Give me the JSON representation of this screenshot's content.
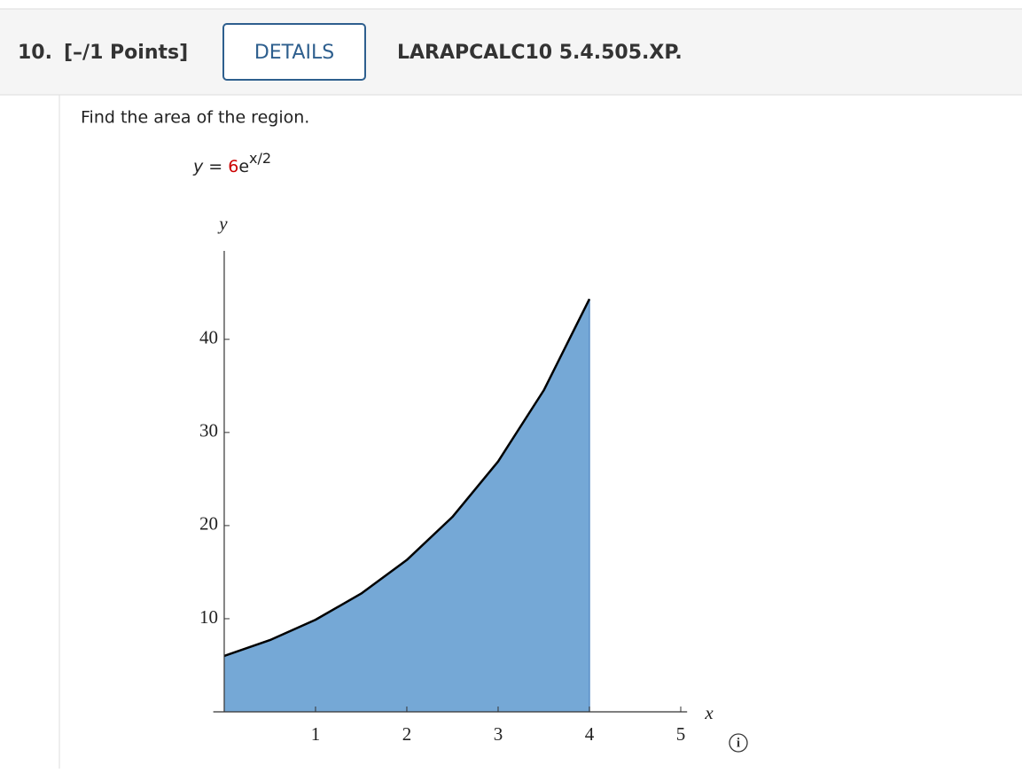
{
  "header": {
    "number": "10.",
    "points": "[–/1 Points]",
    "details": "DETAILS",
    "code": "LARAPCALC10 5.4.505.XP."
  },
  "question": "Find the area of the region.",
  "equation": {
    "lhs": "y =",
    "coefficient": "6",
    "base": "e",
    "exponent": "x/2"
  },
  "chart_data": {
    "type": "area",
    "x": [
      0,
      0.5,
      1,
      1.5,
      2,
      2.5,
      3,
      3.5,
      4
    ],
    "values": [
      6,
      7.7,
      9.89,
      12.7,
      16.31,
      20.94,
      26.89,
      34.53,
      44.33
    ],
    "fill": "#75a8d6",
    "line_color": "#000000",
    "x_label": "x",
    "y_label": "y",
    "xlim": [
      -0.12,
      5.07
    ],
    "ylim": [
      0,
      49.5
    ],
    "xticks": [
      1,
      2,
      3,
      4,
      5
    ],
    "yticks": [
      10,
      20,
      30,
      40
    ]
  }
}
